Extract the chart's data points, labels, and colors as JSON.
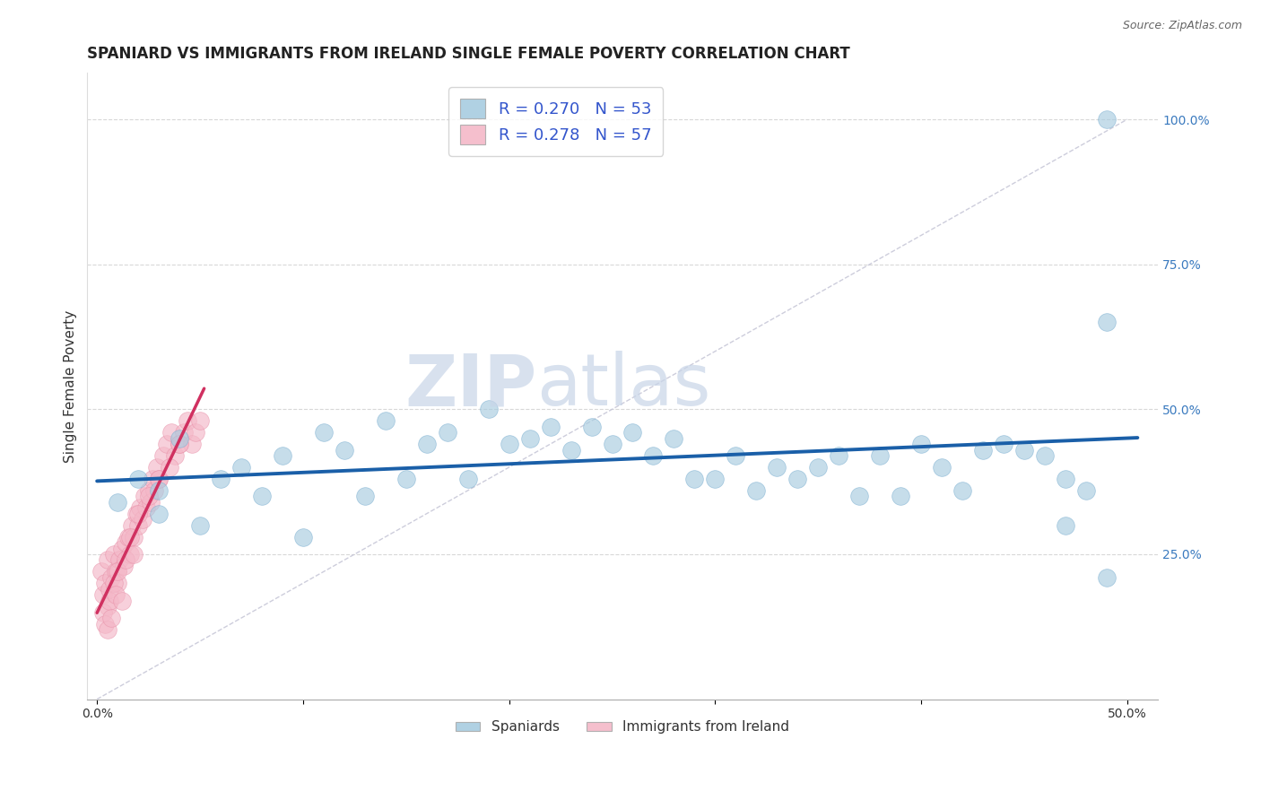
{
  "title": "SPANIARD VS IMMIGRANTS FROM IRELAND SINGLE FEMALE POVERTY CORRELATION CHART",
  "source": "Source: ZipAtlas.com",
  "ylabel": "Single Female Poverty",
  "xlim": [
    -0.005,
    0.515
  ],
  "ylim": [
    0.0,
    1.08
  ],
  "xtick_vals": [
    0.0,
    0.1,
    0.2,
    0.3,
    0.4,
    0.5
  ],
  "xtick_labels": [
    "0.0%",
    "",
    "",
    "",
    "",
    "50.0%"
  ],
  "ytick_vals": [
    0.25,
    0.5,
    0.75,
    1.0
  ],
  "ytick_labels": [
    "25.0%",
    "50.0%",
    "75.0%",
    "100.0%"
  ],
  "spaniards_color": "#a8cce0",
  "spaniards_edge": "#7aaed0",
  "ireland_color": "#f4b8c8",
  "ireland_edge": "#e890a8",
  "spaniards_line_color": "#1a5fa8",
  "ireland_line_color": "#d03060",
  "watermark_color": "#c8d5e8",
  "background_color": "#ffffff",
  "grid_color": "#d8d8d8",
  "title_fontsize": 12,
  "axis_fontsize": 11,
  "tick_fontsize": 10,
  "legend_label_color": "#3355aa",
  "legend_r_n_color": "#3355cc",
  "spaniards_x": [
    0.01,
    0.02,
    0.03,
    0.03,
    0.04,
    0.05,
    0.06,
    0.07,
    0.08,
    0.09,
    0.1,
    0.11,
    0.12,
    0.13,
    0.14,
    0.15,
    0.16,
    0.17,
    0.18,
    0.19,
    0.2,
    0.21,
    0.22,
    0.23,
    0.24,
    0.25,
    0.26,
    0.27,
    0.28,
    0.29,
    0.3,
    0.31,
    0.32,
    0.33,
    0.34,
    0.35,
    0.36,
    0.37,
    0.38,
    0.39,
    0.4,
    0.41,
    0.42,
    0.43,
    0.44,
    0.45,
    0.46,
    0.47,
    0.47,
    0.48,
    0.49,
    0.49,
    0.49
  ],
  "spaniards_y": [
    0.34,
    0.38,
    0.32,
    0.36,
    0.45,
    0.3,
    0.38,
    0.4,
    0.35,
    0.42,
    0.28,
    0.46,
    0.43,
    0.35,
    0.48,
    0.38,
    0.44,
    0.46,
    0.38,
    0.5,
    0.44,
    0.45,
    0.47,
    0.43,
    0.47,
    0.44,
    0.46,
    0.42,
    0.45,
    0.38,
    0.38,
    0.42,
    0.36,
    0.4,
    0.38,
    0.4,
    0.42,
    0.35,
    0.42,
    0.35,
    0.44,
    0.4,
    0.36,
    0.43,
    0.44,
    0.43,
    0.42,
    0.3,
    0.38,
    0.36,
    0.65,
    0.21,
    1.0
  ],
  "ireland_x": [
    0.002,
    0.003,
    0.004,
    0.005,
    0.005,
    0.006,
    0.007,
    0.008,
    0.009,
    0.01,
    0.011,
    0.012,
    0.013,
    0.014,
    0.015,
    0.016,
    0.017,
    0.018,
    0.019,
    0.02,
    0.021,
    0.022,
    0.023,
    0.024,
    0.025,
    0.026,
    0.027,
    0.028,
    0.029,
    0.03,
    0.032,
    0.034,
    0.036,
    0.038,
    0.04,
    0.042,
    0.044,
    0.046,
    0.048,
    0.05,
    0.003,
    0.004,
    0.005,
    0.006,
    0.007,
    0.008,
    0.009,
    0.01,
    0.012,
    0.014,
    0.016,
    0.018,
    0.02,
    0.025,
    0.03,
    0.035,
    0.04
  ],
  "ireland_y": [
    0.22,
    0.18,
    0.2,
    0.16,
    0.24,
    0.19,
    0.21,
    0.25,
    0.22,
    0.2,
    0.24,
    0.26,
    0.23,
    0.27,
    0.28,
    0.25,
    0.3,
    0.28,
    0.32,
    0.3,
    0.33,
    0.31,
    0.35,
    0.33,
    0.36,
    0.34,
    0.38,
    0.36,
    0.4,
    0.38,
    0.42,
    0.44,
    0.46,
    0.42,
    0.44,
    0.46,
    0.48,
    0.44,
    0.46,
    0.48,
    0.15,
    0.13,
    0.12,
    0.17,
    0.14,
    0.2,
    0.18,
    0.22,
    0.17,
    0.24,
    0.28,
    0.25,
    0.32,
    0.35,
    0.38,
    0.4,
    0.44
  ]
}
